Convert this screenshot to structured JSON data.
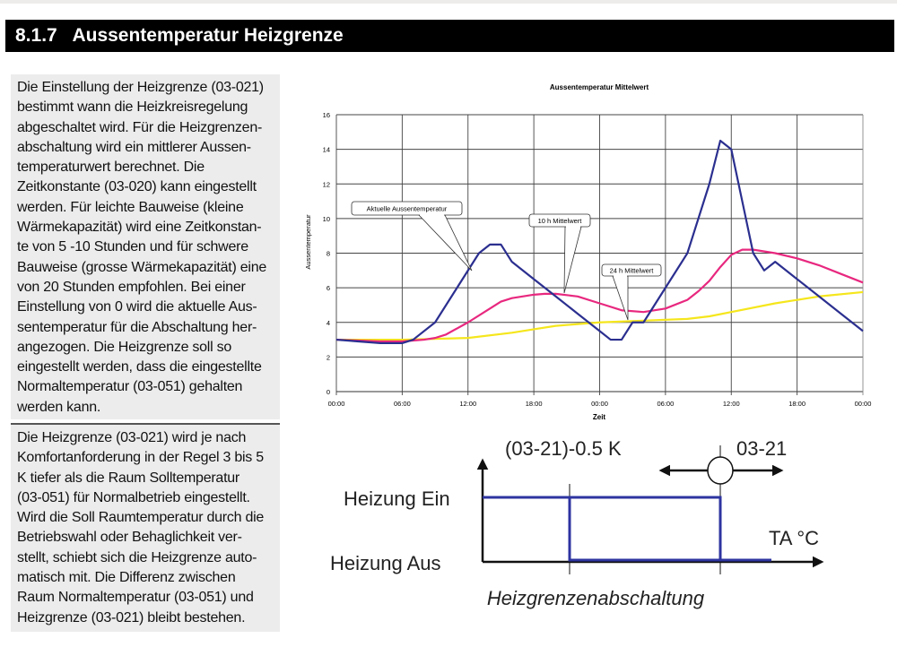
{
  "heading": {
    "number": "8.1.7",
    "title": "Aussentemperatur Heizgrenze"
  },
  "paragraph1": [
    "Die Einstellung der Heizgrenze (03-021)",
    "bestimmt wann die Heizkreisregelung",
    "abgeschaltet wird. Für die Heizgrenzen-",
    "abschaltung wird ein mittlerer Aussen-",
    "temperaturwert berechnet. Die",
    "Zeitkonstante (03-020) kann eingestellt",
    "werden. Für leichte Bauweise (kleine",
    "Wärmekapazität) wird eine Zeitkonstan-",
    "te von 5 -10 Stunden und für schwere",
    "Bauweise (grosse Wärmekapazität) eine",
    "von 20 Stunden empfohlen. Bei einer",
    "Einstellung von 0 wird die aktuelle Aus-",
    "sentemperatur für die Abschaltung her-",
    "angezogen. Die Heizgrenze soll so",
    "eingestellt werden, dass die eingestellte",
    "Normaltemperatur (03-051) gehalten",
    "werden kann."
  ],
  "paragraph2": [
    "Die Heizgrenze (03-021) wird je nach",
    "Komfortanforderung in der Regel 3 bis 5",
    "K tiefer als die Raum Solltemperatur",
    "(03-051) für Normalbetrieb eingestellt.",
    "Wird die Soll Raumtemperatur durch die",
    "Betriebswahl oder Behaglichkeit ver-",
    "stellt, schiebt sich die Heizgrenze auto-",
    "matisch mit. Die Differenz zwischen",
    "Raum Normaltemperatur (03-051) und",
    "Heizgrenze (03-021) bleibt bestehen."
  ],
  "chart_data": {
    "type": "line",
    "title": "Aussentemperatur Mittelwert",
    "xlabel": "Zeit",
    "ylabel": "Aussentemperatur",
    "ylim": [
      0,
      16
    ],
    "xlim_hours": [
      0,
      48
    ],
    "yticks": [
      "0",
      "2",
      "4",
      "6",
      "8",
      "10",
      "12",
      "14",
      "16"
    ],
    "xticks": [
      "00:00",
      "06:00",
      "12:00",
      "18:00",
      "00:00",
      "06:00",
      "12:00",
      "18:00",
      "00:00"
    ],
    "grid": true,
    "series": [
      {
        "name": "Aktuelle Aussentemperatur",
        "color": "#2b2f8f",
        "x": [
          0,
          2,
          4,
          6,
          7,
          9,
          11,
          13,
          14,
          15,
          16,
          18,
          20,
          22,
          24,
          25,
          26,
          27,
          28,
          30,
          32,
          34,
          35,
          36,
          37,
          38,
          39,
          40,
          42,
          44,
          46,
          48
        ],
        "values": [
          3,
          2.9,
          2.8,
          2.8,
          3,
          4,
          6,
          8,
          8.5,
          8.5,
          7.5,
          6.5,
          5.5,
          4.5,
          3.5,
          3,
          3,
          4,
          4,
          6,
          8,
          12,
          14.5,
          14,
          11,
          8,
          7,
          7.5,
          6.5,
          5.5,
          4.5,
          3.5
        ]
      },
      {
        "name": "10 h Mittelwert",
        "color": "#e8287f",
        "x": [
          0,
          4,
          6,
          8,
          9,
          10,
          12,
          14,
          15,
          16,
          18,
          19,
          20,
          22,
          24,
          26,
          28,
          30,
          32,
          33,
          34,
          35,
          36,
          37,
          38,
          40,
          42,
          44,
          46,
          48
        ],
        "values": [
          3,
          2.9,
          2.9,
          3,
          3.1,
          3.3,
          4,
          4.8,
          5.2,
          5.4,
          5.6,
          5.65,
          5.65,
          5.5,
          5.1,
          4.7,
          4.6,
          4.8,
          5.3,
          5.8,
          6.4,
          7.2,
          7.9,
          8.2,
          8.2,
          8.0,
          7.7,
          7.3,
          6.8,
          6.3
        ]
      },
      {
        "name": "24 h Mittelwert",
        "color": "#f5e61c",
        "x": [
          0,
          6,
          12,
          16,
          18,
          20,
          24,
          28,
          32,
          34,
          36,
          40,
          44,
          48
        ],
        "values": [
          3,
          3,
          3.1,
          3.4,
          3.6,
          3.8,
          4.0,
          4.1,
          4.2,
          4.35,
          4.6,
          5.1,
          5.5,
          5.75
        ]
      }
    ],
    "annotations": [
      "Aktuelle Aussentemperatur",
      "10 h Mittelwert",
      "24 h Mittelwert"
    ]
  },
  "diagram": {
    "label_lower_limit": "(03-21)-0.5 K",
    "label_limit": "03-21",
    "label_on": "Heizung Ein",
    "label_off": "Heizung Aus",
    "label_axis": "TA °C",
    "caption": "Heizgrenzenabschaltung",
    "line_color": "#2e34a0"
  }
}
